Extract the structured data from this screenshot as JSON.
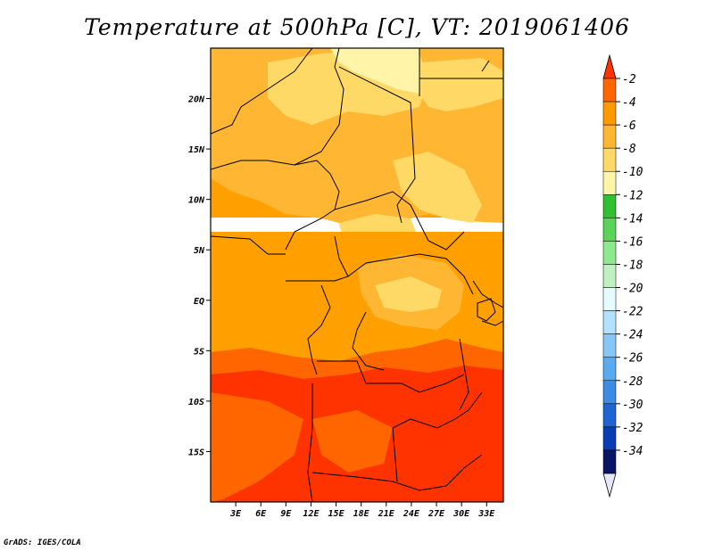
{
  "title": "Temperature at 500hPa [C], VT: 2019061406",
  "credit": "GrADS: IGES/COLA",
  "map": {
    "lon_range": [
      0,
      35
    ],
    "lat_range": [
      -20,
      25
    ],
    "lon_ticks": [
      "3E",
      "6E",
      "9E",
      "12E",
      "15E",
      "18E",
      "21E",
      "24E",
      "27E",
      "30E",
      "33E"
    ],
    "lat_ticks": [
      "20N",
      "15N",
      "10N",
      "5N",
      "EQ",
      "5S",
      "10S",
      "15S"
    ],
    "bands": [
      {
        "lat_min": -20,
        "lat_max": -8,
        "value_class": "-4 to -2",
        "color": "#ff3300"
      },
      {
        "lat_min": -8,
        "lat_max": 8,
        "value_class": "-6 to -4",
        "color": "#ffa000"
      },
      {
        "lat_min": 8,
        "lat_max": 25,
        "value_class": "-8 to -6",
        "color": "#ffb733"
      }
    ]
  },
  "colorbar": {
    "labels": [
      "-2",
      "-4",
      "-6",
      "-8",
      "-10",
      "-12",
      "-14",
      "-16",
      "-18",
      "-20",
      "-22",
      "-24",
      "-26",
      "-28",
      "-30",
      "-32",
      "-34"
    ],
    "colors": [
      "#ff3300",
      "#ff6600",
      "#ff9900",
      "#ffb733",
      "#ffd966",
      "#fff4a8",
      "#30c030",
      "#5ad35a",
      "#8ee88e",
      "#c0f0c0",
      "#e6fbff",
      "#b3e0ff",
      "#87c6f5",
      "#5aaaf0",
      "#3c8ce6",
      "#1f64d2",
      "#0a3cb4",
      "#0a1464",
      "#e6e6fa"
    ]
  }
}
